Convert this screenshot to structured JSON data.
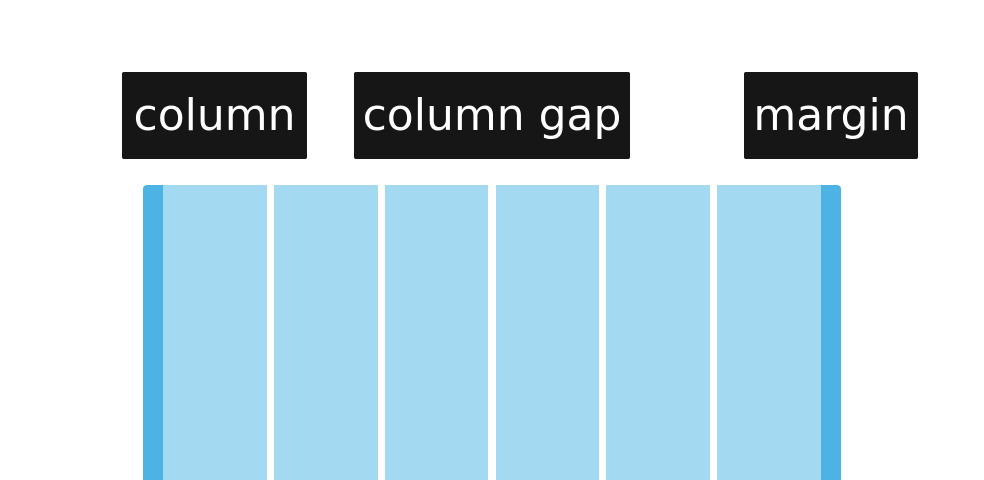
{
  "labels": {
    "column": "column",
    "column_gap": "column gap",
    "margin": "margin"
  },
  "grid": {
    "column_count": 6,
    "colors": {
      "column": "#A4DAF1",
      "margin": "#4DB3E5",
      "gap": "#FFFFFF",
      "label_background": "#161616",
      "label_text": "#FFFFFF"
    }
  }
}
